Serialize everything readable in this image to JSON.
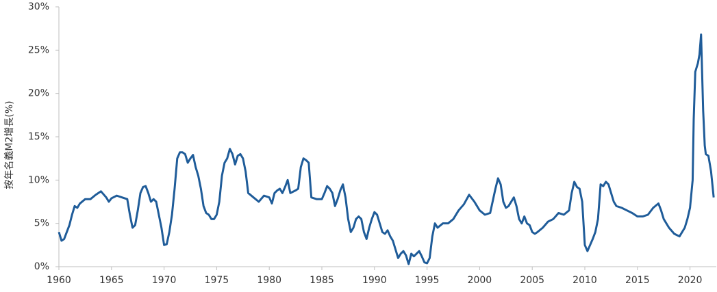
{
  "chart_data": {
    "type": "line",
    "y_label": "按年名義M2增長(%)",
    "color": "#1f5c99",
    "xlim": [
      1960,
      2022.5
    ],
    "xticks": [
      1960,
      1965,
      1970,
      1975,
      1980,
      1985,
      1990,
      1995,
      2000,
      2005,
      2010,
      2015,
      2020
    ],
    "ylim": [
      0,
      30
    ],
    "yticks": [
      {
        "value": 0,
        "label": "0%"
      },
      {
        "value": 5,
        "label": "5%"
      },
      {
        "value": 10,
        "label": "10%"
      },
      {
        "value": 15,
        "label": "15%"
      },
      {
        "value": 20,
        "label": "20%"
      },
      {
        "value": 25,
        "label": "25%"
      },
      {
        "value": 30,
        "label": "30%"
      }
    ],
    "x": [
      1960.0,
      1960.25,
      1960.5,
      1960.75,
      1961.0,
      1961.25,
      1961.5,
      1961.75,
      1962.0,
      1962.5,
      1963.0,
      1963.5,
      1964.0,
      1964.5,
      1964.75,
      1965.0,
      1965.5,
      1966.0,
      1966.5,
      1966.75,
      1967.0,
      1967.25,
      1967.5,
      1967.75,
      1968.0,
      1968.25,
      1968.5,
      1968.75,
      1969.0,
      1969.25,
      1969.5,
      1969.75,
      1970.0,
      1970.25,
      1970.5,
      1970.75,
      1971.0,
      1971.25,
      1971.5,
      1971.75,
      1972.0,
      1972.25,
      1972.5,
      1972.75,
      1973.0,
      1973.25,
      1973.5,
      1973.75,
      1974.0,
      1974.25,
      1974.5,
      1974.75,
      1975.0,
      1975.25,
      1975.5,
      1975.75,
      1976.0,
      1976.25,
      1976.5,
      1976.75,
      1977.0,
      1977.25,
      1977.5,
      1977.75,
      1978.0,
      1978.5,
      1979.0,
      1979.5,
      1980.0,
      1980.25,
      1980.5,
      1980.75,
      1981.0,
      1981.25,
      1981.5,
      1981.75,
      1982.0,
      1982.5,
      1982.75,
      1983.0,
      1983.25,
      1983.5,
      1983.75,
      1984.0,
      1984.5,
      1985.0,
      1985.25,
      1985.5,
      1985.75,
      1986.0,
      1986.25,
      1986.5,
      1986.75,
      1987.0,
      1987.25,
      1987.5,
      1987.75,
      1988.0,
      1988.25,
      1988.5,
      1988.75,
      1989.0,
      1989.25,
      1989.5,
      1989.75,
      1990.0,
      1990.25,
      1990.5,
      1990.75,
      1991.0,
      1991.25,
      1991.5,
      1991.75,
      1992.0,
      1992.25,
      1992.5,
      1992.75,
      1993.0,
      1993.25,
      1993.5,
      1993.75,
      1994.0,
      1994.25,
      1994.5,
      1994.75,
      1995.0,
      1995.25,
      1995.5,
      1995.75,
      1996.0,
      1996.5,
      1997.0,
      1997.5,
      1998.0,
      1998.5,
      1999.0,
      1999.5,
      2000.0,
      2000.5,
      2001.0,
      2001.5,
      2001.75,
      2002.0,
      2002.25,
      2002.5,
      2002.75,
      2003.0,
      2003.25,
      2003.5,
      2003.75,
      2004.0,
      2004.25,
      2004.5,
      2004.75,
      2005.0,
      2005.25,
      2005.5,
      2006.0,
      2006.5,
      2007.0,
      2007.5,
      2008.0,
      2008.5,
      2008.75,
      2009.0,
      2009.25,
      2009.5,
      2009.75,
      2010.0,
      2010.25,
      2010.5,
      2010.75,
      2011.0,
      2011.25,
      2011.5,
      2011.75,
      2012.0,
      2012.25,
      2012.5,
      2012.75,
      2013.0,
      2013.5,
      2014.0,
      2014.5,
      2015.0,
      2015.5,
      2016.0,
      2016.5,
      2017.0,
      2017.25,
      2017.5,
      2018.0,
      2018.5,
      2019.0,
      2019.5,
      2019.75,
      2020.0,
      2020.25,
      2020.35,
      2020.5,
      2020.75,
      2020.9,
      2021.0,
      2021.05,
      2021.25,
      2021.4,
      2021.5,
      2021.75,
      2022.0,
      2022.25
    ],
    "values": [
      4.0,
      3.0,
      3.2,
      4.0,
      4.8,
      6.0,
      7.0,
      6.8,
      7.3,
      7.8,
      7.8,
      8.3,
      8.7,
      8.0,
      7.5,
      7.9,
      8.2,
      8.0,
      7.8,
      6.0,
      4.5,
      4.8,
      6.5,
      8.5,
      9.2,
      9.3,
      8.5,
      7.5,
      7.8,
      7.5,
      6.0,
      4.5,
      2.5,
      2.6,
      4.0,
      6.0,
      9.0,
      12.5,
      13.2,
      13.2,
      13.0,
      12.0,
      12.5,
      12.9,
      11.5,
      10.5,
      9.0,
      7.0,
      6.2,
      6.0,
      5.5,
      5.5,
      6.0,
      7.5,
      10.5,
      12.0,
      12.5,
      13.6,
      13.0,
      11.8,
      12.8,
      13.0,
      12.5,
      11.0,
      8.5,
      8.0,
      7.5,
      8.2,
      8.0,
      7.3,
      8.5,
      8.8,
      9.0,
      8.5,
      9.2,
      10.0,
      8.5,
      8.8,
      9.0,
      11.5,
      12.5,
      12.3,
      12.0,
      8.0,
      7.8,
      7.8,
      8.5,
      9.3,
      9.0,
      8.5,
      7.0,
      7.8,
      8.8,
      9.5,
      8.0,
      5.5,
      4.0,
      4.5,
      5.5,
      5.8,
      5.5,
      4.0,
      3.2,
      4.5,
      5.5,
      6.3,
      6.0,
      5.0,
      4.0,
      3.8,
      4.2,
      3.5,
      3.0,
      2.0,
      1.0,
      1.5,
      1.8,
      1.3,
      0.3,
      1.5,
      1.2,
      1.5,
      1.8,
      1.2,
      0.5,
      0.4,
      1.0,
      3.5,
      5.0,
      4.5,
      5.0,
      5.0,
      5.5,
      6.5,
      7.2,
      8.3,
      7.5,
      6.5,
      6.0,
      6.2,
      9.0,
      10.2,
      9.5,
      7.5,
      6.8,
      7.0,
      7.5,
      8.0,
      7.0,
      5.5,
      5.0,
      5.8,
      5.0,
      4.8,
      4.0,
      3.8,
      4.0,
      4.5,
      5.2,
      5.5,
      6.2,
      6.0,
      6.5,
      8.5,
      9.8,
      9.2,
      9.0,
      7.5,
      2.5,
      1.8,
      2.5,
      3.2,
      4.0,
      5.5,
      9.5,
      9.3,
      9.8,
      9.5,
      8.5,
      7.5,
      7.0,
      6.8,
      6.5,
      6.2,
      5.8,
      5.8,
      6.0,
      6.8,
      7.3,
      6.5,
      5.5,
      4.5,
      3.8,
      3.5,
      4.5,
      5.5,
      6.8,
      10.0,
      17.0,
      22.5,
      23.5,
      24.5,
      26.0,
      26.8,
      18.0,
      14.0,
      13.0,
      12.8,
      11.0,
      8.0
    ]
  }
}
